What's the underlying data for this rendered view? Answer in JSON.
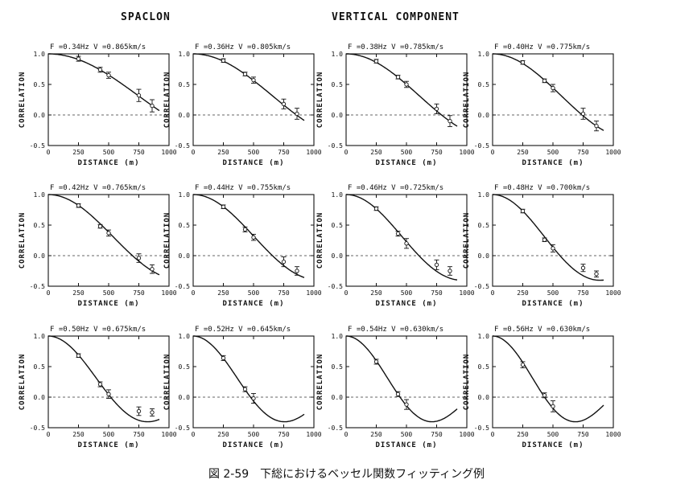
{
  "header": {
    "left": "SPACLON",
    "right": "VERTICAL COMPONENT"
  },
  "caption": "図 2-59　下総におけるベッセル関数フィッティング例",
  "chart_data": [
    {
      "type": "scatter",
      "title": "F =0.34Hz  V =0.865km/s",
      "f_hz": 0.34,
      "v_kms": 0.865,
      "xlabel": "DISTANCE (m)",
      "ylabel": "CORRELATION",
      "xlim": [
        0,
        1000
      ],
      "ylim": [
        -0.5,
        1.0
      ],
      "xticks": [
        "0",
        "250",
        "500",
        "750",
        "1000"
      ],
      "yticks": [
        "1.0",
        "0.5",
        "0.0",
        "-0.5"
      ],
      "x": [
        250,
        430,
        500,
        750,
        860
      ],
      "y": [
        0.92,
        0.74,
        0.65,
        0.32,
        0.15
      ],
      "err": [
        0.04,
        0.04,
        0.05,
        0.1,
        0.1
      ]
    },
    {
      "type": "scatter",
      "title": "F =0.36Hz  V =0.805km/s",
      "f_hz": 0.36,
      "v_kms": 0.805,
      "xlabel": "DISTANCE (m)",
      "ylabel": "CORRELATION",
      "xlim": [
        0,
        1000
      ],
      "ylim": [
        -0.5,
        1.0
      ],
      "xticks": [
        "0",
        "250",
        "500",
        "750",
        "1000"
      ],
      "yticks": [
        "1.0",
        "0.5",
        "0.0",
        "-0.5"
      ],
      "x": [
        250,
        430,
        500,
        750,
        860
      ],
      "y": [
        0.89,
        0.67,
        0.57,
        0.18,
        0.02
      ],
      "err": [
        0.03,
        0.03,
        0.05,
        0.08,
        0.09
      ]
    },
    {
      "type": "scatter",
      "title": "F =0.38Hz  V =0.785km/s",
      "f_hz": 0.38,
      "v_kms": 0.785,
      "xlabel": "DISTANCE (m)",
      "ylabel": "CORRELATION",
      "xlim": [
        0,
        1000
      ],
      "ylim": [
        -0.5,
        1.0
      ],
      "xticks": [
        "0",
        "250",
        "500",
        "750",
        "1000"
      ],
      "yticks": [
        "1.0",
        "0.5",
        "0.0",
        "-0.5"
      ],
      "x": [
        250,
        430,
        500,
        750,
        860
      ],
      "y": [
        0.88,
        0.62,
        0.5,
        0.1,
        -0.1
      ],
      "err": [
        0.03,
        0.03,
        0.05,
        0.08,
        0.09
      ]
    },
    {
      "type": "scatter",
      "title": "F =0.40Hz  V =0.775km/s",
      "f_hz": 0.4,
      "v_kms": 0.775,
      "xlabel": "DISTANCE (m)",
      "ylabel": "CORRELATION",
      "xlim": [
        0,
        1000
      ],
      "ylim": [
        -0.5,
        1.0
      ],
      "xticks": [
        "0",
        "250",
        "500",
        "750",
        "1000"
      ],
      "yticks": [
        "1.0",
        "0.5",
        "0.0",
        "-0.5"
      ],
      "x": [
        250,
        430,
        500,
        750,
        860
      ],
      "y": [
        0.86,
        0.56,
        0.44,
        0.02,
        -0.18
      ],
      "err": [
        0.03,
        0.03,
        0.06,
        0.09,
        0.08
      ]
    },
    {
      "type": "scatter",
      "title": "F =0.42Hz  V =0.765km/s",
      "f_hz": 0.42,
      "v_kms": 0.765,
      "xlabel": "DISTANCE (m)",
      "ylabel": "CORRELATION",
      "xlim": [
        0,
        1000
      ],
      "ylim": [
        -0.5,
        1.0
      ],
      "xticks": [
        "0",
        "250",
        "500",
        "750",
        "1000"
      ],
      "yticks": [
        "1.0",
        "0.5",
        "0.0",
        "-0.5"
      ],
      "x": [
        250,
        430,
        500,
        750,
        860
      ],
      "y": [
        0.82,
        0.48,
        0.37,
        -0.04,
        -0.22
      ],
      "err": [
        0.03,
        0.03,
        0.05,
        0.07,
        0.07
      ]
    },
    {
      "type": "scatter",
      "title": "F =0.44Hz  V =0.755km/s",
      "f_hz": 0.44,
      "v_kms": 0.755,
      "xlabel": "DISTANCE (m)",
      "ylabel": "CORRELATION",
      "xlim": [
        0,
        1000
      ],
      "ylim": [
        -0.5,
        1.0
      ],
      "xticks": [
        "0",
        "250",
        "500",
        "750",
        "1000"
      ],
      "yticks": [
        "1.0",
        "0.5",
        "0.0",
        "-0.5"
      ],
      "x": [
        250,
        430,
        500,
        750,
        860
      ],
      "y": [
        0.8,
        0.43,
        0.3,
        -0.1,
        -0.25
      ],
      "err": [
        0.03,
        0.04,
        0.05,
        0.08,
        0.07
      ]
    },
    {
      "type": "scatter",
      "title": "F =0.46Hz  V =0.725km/s",
      "f_hz": 0.46,
      "v_kms": 0.725,
      "xlabel": "DISTANCE (m)",
      "ylabel": "CORRELATION",
      "xlim": [
        0,
        1000
      ],
      "ylim": [
        -0.5,
        1.0
      ],
      "xticks": [
        "0",
        "250",
        "500",
        "750",
        "1000"
      ],
      "yticks": [
        "1.0",
        "0.5",
        "0.0",
        "-0.5"
      ],
      "x": [
        250,
        430,
        500,
        750,
        860
      ],
      "y": [
        0.77,
        0.36,
        0.2,
        -0.15,
        -0.25
      ],
      "err": [
        0.03,
        0.04,
        0.08,
        0.08,
        0.07
      ]
    },
    {
      "type": "scatter",
      "title": "F =0.48Hz  V =0.700km/s",
      "f_hz": 0.48,
      "v_kms": 0.7,
      "xlabel": "DISTANCE (m)",
      "ylabel": "CORRELATION",
      "xlim": [
        0,
        1000
      ],
      "ylim": [
        -0.5,
        1.0
      ],
      "xticks": [
        "0",
        "250",
        "500",
        "750",
        "1000"
      ],
      "yticks": [
        "1.0",
        "0.5",
        "0.0",
        "-0.5"
      ],
      "x": [
        250,
        430,
        500,
        750,
        860
      ],
      "y": [
        0.73,
        0.26,
        0.12,
        -0.2,
        -0.3
      ],
      "err": [
        0.03,
        0.03,
        0.06,
        0.06,
        0.05
      ]
    },
    {
      "type": "scatter",
      "title": "F =0.50Hz  V =0.675km/s",
      "f_hz": 0.5,
      "v_kms": 0.675,
      "xlabel": "DISTANCE (m)",
      "ylabel": "CORRELATION",
      "xlim": [
        0,
        1000
      ],
      "ylim": [
        -0.5,
        1.0
      ],
      "xticks": [
        "0",
        "250",
        "500",
        "750",
        "1000"
      ],
      "yticks": [
        "1.0",
        "0.5",
        "0.0",
        "-0.5"
      ],
      "x": [
        250,
        430,
        500,
        750,
        860
      ],
      "y": [
        0.68,
        0.21,
        0.05,
        -0.23,
        -0.25
      ],
      "err": [
        0.03,
        0.04,
        0.07,
        0.07,
        0.06
      ]
    },
    {
      "type": "scatter",
      "title": "F =0.52Hz  V =0.645km/s",
      "f_hz": 0.52,
      "v_kms": 0.645,
      "xlabel": "DISTANCE (m)",
      "ylabel": "CORRELATION",
      "xlim": [
        0,
        1000
      ],
      "ylim": [
        -0.5,
        1.0
      ],
      "xticks": [
        "0",
        "250",
        "500",
        "750",
        "1000"
      ],
      "yticks": [
        "1.0",
        "0.5",
        "0.0",
        "-0.5"
      ],
      "x": [
        250,
        430,
        500
      ],
      "y": [
        0.64,
        0.13,
        -0.02
      ],
      "err": [
        0.04,
        0.04,
        0.08
      ]
    },
    {
      "type": "scatter",
      "title": "F =0.54Hz  V =0.630km/s",
      "f_hz": 0.54,
      "v_kms": 0.63,
      "xlabel": "DISTANCE (m)",
      "ylabel": "CORRELATION",
      "xlim": [
        0,
        1000
      ],
      "ylim": [
        -0.5,
        1.0
      ],
      "xticks": [
        "0",
        "250",
        "500",
        "750",
        "1000"
      ],
      "yticks": [
        "1.0",
        "0.5",
        "0.0",
        "-0.5"
      ],
      "x": [
        250,
        430,
        500
      ],
      "y": [
        0.58,
        0.05,
        -0.12
      ],
      "err": [
        0.04,
        0.04,
        0.08
      ]
    },
    {
      "type": "scatter",
      "title": "F =0.56Hz  V =0.630km/s",
      "f_hz": 0.56,
      "v_kms": 0.63,
      "xlabel": "DISTANCE (m)",
      "ylabel": "CORRELATION",
      "xlim": [
        0,
        1000
      ],
      "ylim": [
        -0.5,
        1.0
      ],
      "xticks": [
        "0",
        "250",
        "500",
        "750",
        "1000"
      ],
      "yticks": [
        "1.0",
        "0.5",
        "0.0",
        "-0.5"
      ],
      "x": [
        250,
        430,
        500
      ],
      "y": [
        0.53,
        0.03,
        -0.15
      ],
      "err": [
        0.05,
        0.04,
        0.09
      ]
    }
  ]
}
